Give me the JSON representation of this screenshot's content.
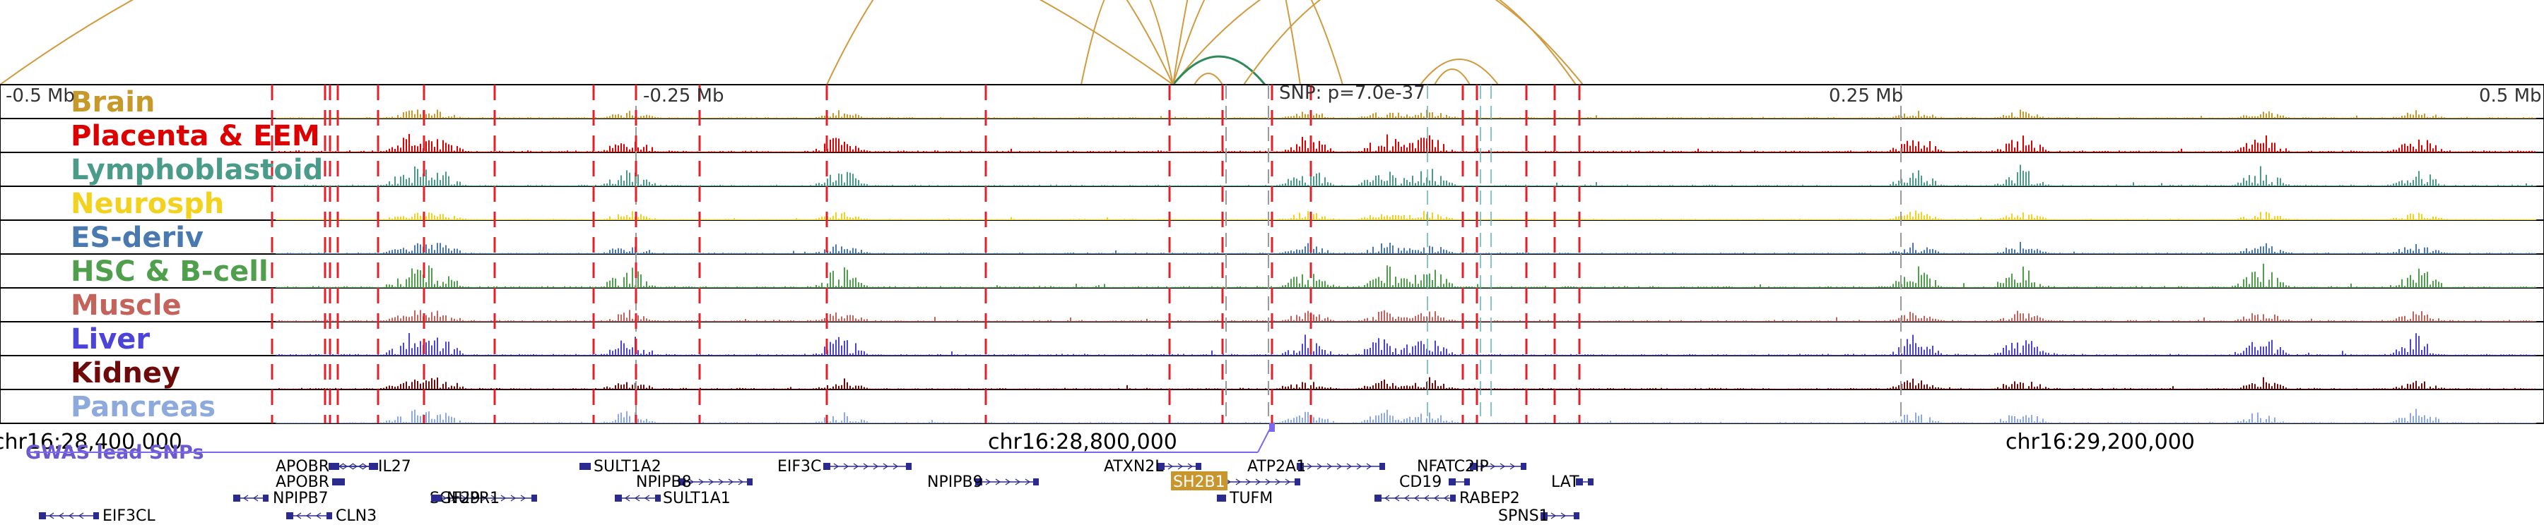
{
  "header": {
    "axis_ticks": [
      {
        "label": "-0.5 Mb"
      },
      {
        "label": "-0.25 Mb"
      },
      {
        "label": "0.25 Mb"
      },
      {
        "label": "0.5 Mb"
      }
    ],
    "snp_annotation": "SNP: p=7.0e-37"
  },
  "tracks": [
    {
      "name": "Brain",
      "color": "#c59a2b",
      "level": 0.2,
      "peak": 0.35
    },
    {
      "name": "Placenta & EEM",
      "color": "#dd0000",
      "level": 0.35,
      "peak": 0.8
    },
    {
      "name": "Lymphoblastoid",
      "color": "#4a9b8a",
      "level": 0.25,
      "peak": 0.9
    },
    {
      "name": "Neurosph",
      "color": "#f2d21e",
      "level": 0.15,
      "peak": 0.4
    },
    {
      "name": "ES-deriv",
      "color": "#4a79b0",
      "level": 0.2,
      "peak": 0.5
    },
    {
      "name": "HSC & B-cell",
      "color": "#4f9f4c",
      "level": 0.3,
      "peak": 1.0
    },
    {
      "name": "Muscle",
      "color": "#c4625c",
      "level": 0.3,
      "peak": 0.5
    },
    {
      "name": "Liver",
      "color": "#4c43d9",
      "level": 0.3,
      "peak": 0.95
    },
    {
      "name": "Kidney",
      "color": "#6e0a0a",
      "level": 0.25,
      "peak": 0.5
    },
    {
      "name": "Pancreas",
      "color": "#8eaadc",
      "level": 0.2,
      "peak": 0.6
    }
  ],
  "coordinates": [
    {
      "label": "chr16:28,400,000"
    },
    {
      "label": "chr16:28,800,000"
    },
    {
      "label": "chr16:29,200,000"
    }
  ],
  "gwas": {
    "label": "GWAS lead SNPs",
    "color": "#6a5acd",
    "line_color": "#7b68ee"
  },
  "loop_colors": {
    "primary": "#d19a3e",
    "highlight": "#2e8b57"
  },
  "genes": [
    {
      "name": "APOBR",
      "direction": "right",
      "highlight": false
    },
    {
      "name": "IL27",
      "direction": "left",
      "highlight": false
    },
    {
      "name": "APOBR",
      "direction": "right",
      "highlight": false
    },
    {
      "name": "NPIPB7",
      "direction": "left",
      "highlight": false
    },
    {
      "name": "EIF3CL",
      "direction": "left",
      "highlight": false
    },
    {
      "name": "CLN3",
      "direction": "left",
      "highlight": false
    },
    {
      "name": "SGF29",
      "direction": "right",
      "highlight": false
    },
    {
      "name": "NUPR1",
      "direction": "left",
      "highlight": false
    },
    {
      "name": "SULT1A2",
      "direction": "left",
      "highlight": false
    },
    {
      "name": "NPIPB8",
      "direction": "right",
      "highlight": false
    },
    {
      "name": "SULT1A1",
      "direction": "left",
      "highlight": false
    },
    {
      "name": "EIF3C",
      "direction": "right",
      "highlight": false
    },
    {
      "name": "NPIPB9",
      "direction": "right",
      "highlight": false
    },
    {
      "name": "ATXN2L",
      "direction": "right",
      "highlight": false
    },
    {
      "name": "SH2B1",
      "direction": "right",
      "highlight": true
    },
    {
      "name": "TUFM",
      "direction": "left",
      "highlight": false
    },
    {
      "name": "ATP2A1",
      "direction": "right",
      "highlight": false
    },
    {
      "name": "NFATC2IP",
      "direction": "right",
      "highlight": false
    },
    {
      "name": "CD19",
      "direction": "right",
      "highlight": false
    },
    {
      "name": "RABEP2",
      "direction": "left",
      "highlight": false
    },
    {
      "name": "LAT",
      "direction": "right",
      "highlight": false
    },
    {
      "name": "SPNS1",
      "direction": "right",
      "highlight": false
    }
  ],
  "colors": {
    "gene_body": "#2b2b8f",
    "gene_highlight_bg": "#c8962c",
    "marker_red": "#e0202a",
    "marker_gray": "#9a9a9a",
    "marker_teal": "#5fb3b3"
  }
}
